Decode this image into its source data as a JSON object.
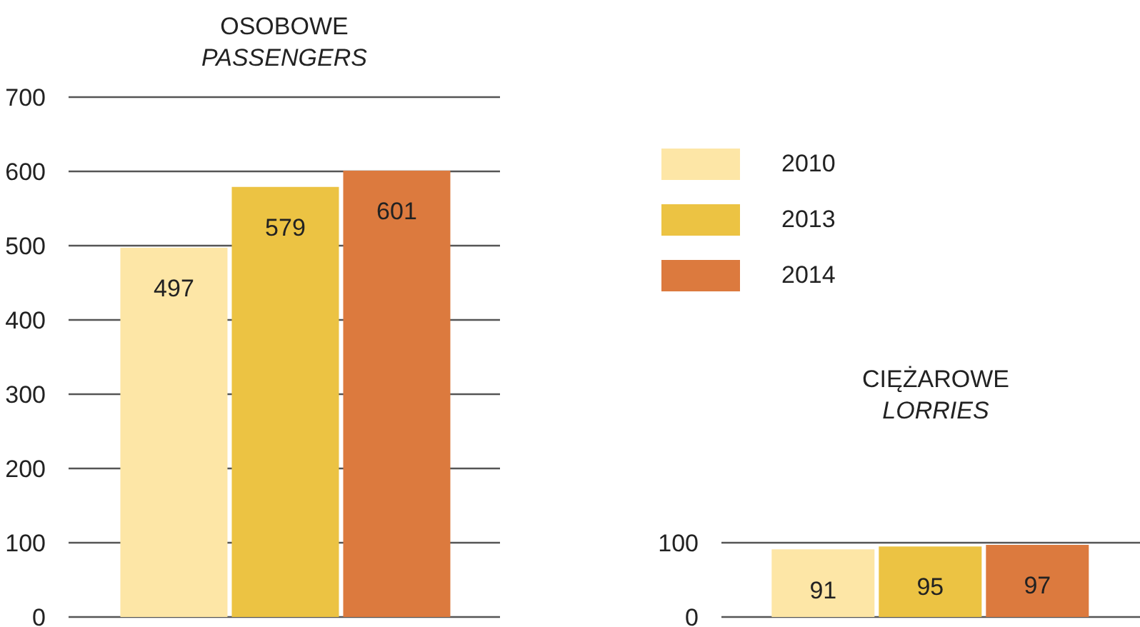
{
  "chart_data": [
    {
      "type": "bar",
      "title": "OSOBOWE",
      "subtitle": "PASSENGERS",
      "categories": [
        null
      ],
      "series": [
        {
          "name": "2010",
          "color": "#fde6a6",
          "values": [
            497
          ]
        },
        {
          "name": "2013",
          "color": "#ecc343",
          "values": [
            579
          ]
        },
        {
          "name": "2014",
          "color": "#dc7a3e",
          "values": [
            601
          ]
        }
      ],
      "ylim": [
        0,
        700
      ],
      "yticks": [
        0,
        100,
        200,
        300,
        400,
        500,
        600,
        700
      ],
      "grid": "y",
      "legend": "right",
      "data_labels": true,
      "tick_labels": "y"
    },
    {
      "type": "bar",
      "title": "CIĘŻAROWE",
      "subtitle": "LORRIES",
      "categories": [
        null
      ],
      "series": [
        {
          "color": "#fde6a6",
          "values": [
            91
          ]
        },
        {
          "color": "#ecc343",
          "values": [
            95
          ]
        },
        {
          "color": "#dc7a3e",
          "values": [
            97
          ]
        }
      ],
      "ylim": [
        0,
        100
      ],
      "yticks": [
        0,
        100
      ],
      "grid": "y",
      "data_labels": true,
      "tick_labels": "y"
    }
  ]
}
